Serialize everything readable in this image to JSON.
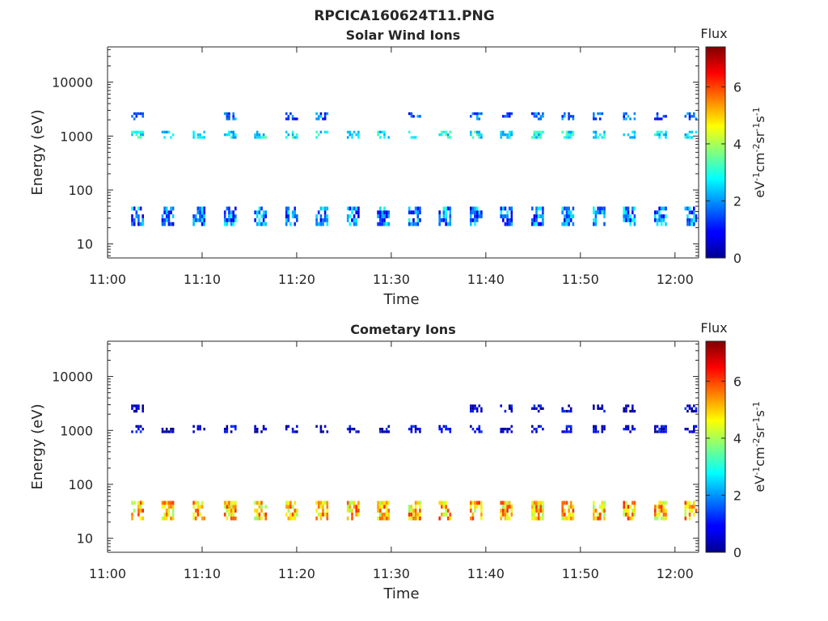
{
  "figure": {
    "filename": "RPCICA160624T11.PNG"
  },
  "chart_data": [
    {
      "type": "heatmap",
      "title": "Solar Wind Ions",
      "xlabel": "Time",
      "ylabel": "Energy (eV)",
      "x_ticks": [
        "11:00",
        "11:10",
        "11:20",
        "11:30",
        "11:40",
        "11:50",
        "12:00"
      ],
      "y_ticks": [
        "10",
        "100",
        "1000",
        "10000"
      ],
      "y_scale": "log",
      "y_range_eV": [
        5.5,
        45000
      ],
      "x_range_min": [
        0,
        62.5
      ],
      "colorbar": {
        "title": "Flux",
        "label": "eV-1cm-2sr-1s-1",
        "ticks": [
          "0",
          "2",
          "4",
          "6"
        ],
        "range": [
          0,
          7.4
        ],
        "colormap": "jet"
      },
      "scans_start_min": [
        2.5,
        5.7,
        9.0,
        12.3,
        15.5,
        18.8,
        22.0,
        25.3,
        28.5,
        31.8,
        35.0,
        38.3,
        41.5,
        44.8,
        48.0,
        51.3,
        54.5,
        57.8,
        61.0
      ],
      "bands": [
        {
          "energy_eV": 2200,
          "approx_flux": 1.6,
          "scans": [
            0,
            3,
            5,
            6,
            9,
            11,
            12,
            13,
            14,
            15,
            16,
            17,
            18
          ]
        },
        {
          "energy_eV": 1000,
          "approx_flux": 2.7,
          "scans": [
            0,
            1,
            2,
            3,
            4,
            5,
            6,
            7,
            8,
            9,
            10,
            11,
            12,
            13,
            14,
            15,
            16,
            17,
            18
          ]
        },
        {
          "energy_eV": 30,
          "approx_flux": 1.8,
          "scans": [
            0,
            1,
            2,
            3,
            4,
            5,
            6,
            7,
            8,
            9,
            10,
            11,
            12,
            13,
            14,
            15,
            16,
            17,
            18
          ]
        }
      ]
    },
    {
      "type": "heatmap",
      "title": "Cometary Ions",
      "xlabel": "Time",
      "ylabel": "Energy (eV)",
      "x_ticks": [
        "11:00",
        "11:10",
        "11:20",
        "11:30",
        "11:40",
        "11:50",
        "12:00"
      ],
      "y_ticks": [
        "10",
        "100",
        "1000",
        "10000"
      ],
      "y_scale": "log",
      "y_range_eV": [
        5.5,
        45000
      ],
      "x_range_min": [
        0,
        62.5
      ],
      "colorbar": {
        "title": "Flux",
        "label": "eV-1cm-2sr-1s-1",
        "ticks": [
          "0",
          "2",
          "4",
          "6"
        ],
        "range": [
          0,
          7.4
        ],
        "colormap": "jet"
      },
      "scans_start_min": [
        2.5,
        5.7,
        9.0,
        12.3,
        15.5,
        18.8,
        22.0,
        25.3,
        28.5,
        31.8,
        35.0,
        38.3,
        41.5,
        44.8,
        48.0,
        51.3,
        54.5,
        57.8,
        61.0
      ],
      "bands": [
        {
          "energy_eV": 2400,
          "approx_flux": 0.6,
          "scans": [
            0,
            11,
            12,
            13,
            14,
            15,
            16,
            18
          ]
        },
        {
          "energy_eV": 1000,
          "approx_flux": 0.6,
          "scans": [
            0,
            1,
            2,
            3,
            4,
            5,
            6,
            7,
            8,
            9,
            10,
            11,
            12,
            13,
            14,
            15,
            16,
            17,
            18
          ]
        },
        {
          "energy_eV": 30,
          "approx_flux": 5.0,
          "scans": [
            0,
            1,
            2,
            3,
            4,
            5,
            6,
            7,
            8,
            9,
            10,
            11,
            12,
            13,
            14,
            15,
            16,
            17,
            18
          ]
        }
      ]
    }
  ]
}
